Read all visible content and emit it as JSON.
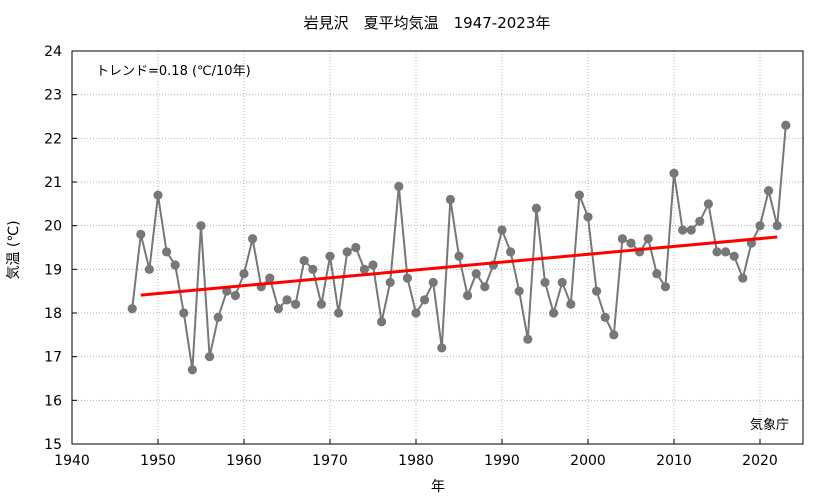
{
  "chart_data": {
    "type": "scatter",
    "title": "岩見沢　夏平均気温　1947-2023年",
    "xlabel": "年",
    "ylabel": "気温 (℃)",
    "xlim": [
      1940,
      2025
    ],
    "ylim": [
      15,
      24
    ],
    "x_ticks": [
      "1940",
      "1950",
      "1960",
      "1970",
      "1980",
      "1990",
      "2000",
      "2010",
      "2020"
    ],
    "y_ticks": [
      "15",
      "16",
      "17",
      "18",
      "19",
      "20",
      "21",
      "22",
      "23",
      "24"
    ],
    "grid": true,
    "legend": "none",
    "annotations": {
      "trend": "トレンド=0.18 (℃/10年)",
      "source": "気象庁"
    },
    "colors": {
      "points": "#777777",
      "line": "#777777",
      "trend": "#ff0000",
      "grid": "#b0b0b0"
    },
    "series": [
      {
        "x": [
          1947,
          1948,
          1949,
          1950,
          1951,
          1952,
          1953,
          1954,
          1955,
          1956,
          1957,
          1958,
          1959,
          1960,
          1961,
          1962,
          1963,
          1964,
          1965,
          1966,
          1967,
          1968,
          1969,
          1970,
          1971,
          1972,
          1973,
          1974,
          1975,
          1976,
          1977,
          1978,
          1979,
          1980,
          1981,
          1982,
          1983,
          1984,
          1985,
          1986,
          1987,
          1988,
          1989,
          1990,
          1991,
          1992,
          1993,
          1994,
          1995,
          1996,
          1997,
          1998,
          1999,
          2000,
          2001,
          2002,
          2003,
          2004,
          2005,
          2006,
          2007,
          2008,
          2009,
          2010,
          2011,
          2012,
          2013,
          2014,
          2015,
          2016,
          2017,
          2018,
          2019,
          2020,
          2021,
          2022,
          2023
        ],
        "values": [
          18.1,
          19.8,
          19.0,
          20.7,
          19.4,
          19.1,
          18.0,
          16.7,
          20.0,
          17.0,
          17.9,
          18.5,
          18.4,
          18.9,
          19.7,
          18.6,
          18.8,
          18.1,
          18.3,
          18.2,
          19.2,
          19.0,
          18.2,
          19.3,
          18.0,
          19.4,
          19.5,
          19.0,
          19.1,
          17.8,
          18.7,
          20.9,
          18.8,
          18.0,
          18.3,
          18.7,
          17.2,
          20.6,
          19.3,
          18.4,
          18.9,
          18.6,
          19.1,
          19.9,
          19.4,
          18.5,
          17.4,
          20.4,
          18.7,
          18.0,
          18.7,
          18.2,
          20.7,
          20.2,
          18.5,
          17.9,
          17.5,
          19.7,
          19.6,
          19.4,
          19.7,
          18.9,
          18.6,
          21.2,
          19.9,
          19.9,
          20.1,
          20.5,
          19.4,
          19.4,
          19.3,
          18.8,
          19.6,
          20.0,
          20.8,
          20.0,
          22.3
        ]
      }
    ],
    "trend_line": {
      "x": [
        1948,
        2022
      ],
      "y": [
        18.41,
        19.74
      ]
    }
  }
}
